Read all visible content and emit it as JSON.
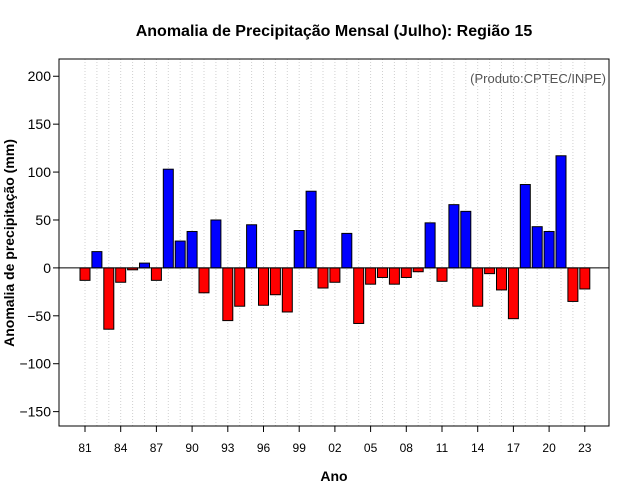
{
  "chart_data": {
    "type": "bar",
    "title": "Anomalia de Precipitação Mensal (Julho): Região 15",
    "xlabel": "Ano",
    "ylabel": "Anomalia de precipitação (mm)",
    "annotation": "(Produto:CPTEC/INPE)",
    "ylim": [
      -165,
      218
    ],
    "yticks": [
      -150,
      -100,
      -50,
      0,
      50,
      100,
      150,
      200
    ],
    "ytick_labels": [
      "−150",
      "−100",
      "−50",
      "0",
      "50",
      "100",
      "150",
      "200"
    ],
    "xtick_labels": [
      "81",
      "84",
      "87",
      "90",
      "93",
      "96",
      "99",
      "02",
      "05",
      "08",
      "11",
      "14",
      "17",
      "20",
      "23"
    ],
    "xtick_every": 3,
    "grid": "vertical dotted",
    "positive_color": "#0000ff",
    "negative_color": "#ff0000",
    "categories": [
      "1981",
      "1982",
      "1983",
      "1984",
      "1985",
      "1986",
      "1987",
      "1988",
      "1989",
      "1990",
      "1991",
      "1992",
      "1993",
      "1994",
      "1995",
      "1996",
      "1997",
      "1998",
      "1999",
      "2000",
      "2001",
      "2002",
      "2003",
      "2004",
      "2005",
      "2006",
      "2007",
      "2008",
      "2009",
      "2010",
      "2011",
      "2012",
      "2013",
      "2014",
      "2015",
      "2016",
      "2017",
      "2018",
      "2019",
      "2020",
      "2021",
      "2022",
      "2023"
    ],
    "values": [
      -13,
      17,
      -64,
      -15,
      -2,
      5,
      -13,
      103,
      28,
      38,
      -26,
      50,
      -55,
      -40,
      45,
      -39,
      -28,
      -46,
      39,
      80,
      -21,
      -15,
      36,
      -58,
      -17,
      -10,
      -17,
      -10,
      -4,
      47,
      -14,
      66,
      59,
      -40,
      -6,
      -23,
      -53,
      87,
      43,
      38,
      117,
      -35,
      -22
    ]
  }
}
